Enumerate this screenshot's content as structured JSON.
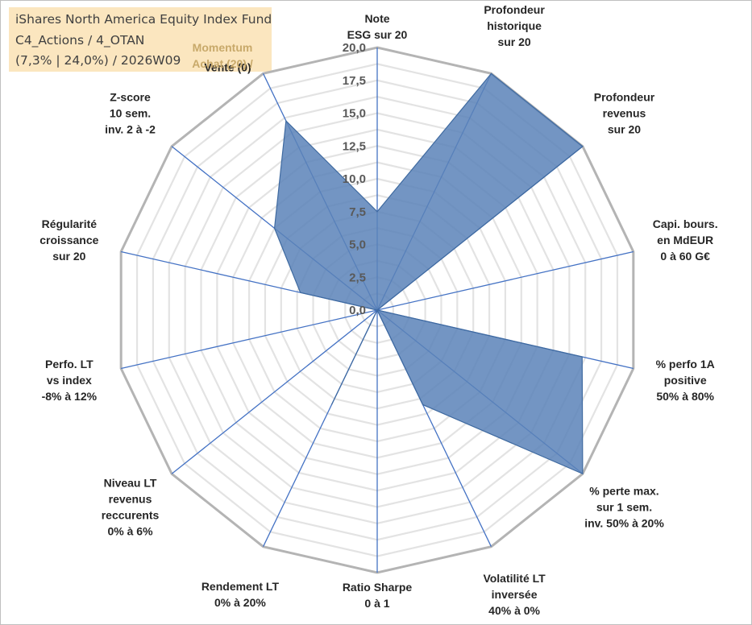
{
  "header": {
    "fund_name": "iShares North America Equity Index Fund",
    "category": "C4_Actions / 4_OTAN",
    "stats": "(7,3% | 24,0%) / 2026W09"
  },
  "momentum": {
    "line1": "Momentum",
    "line2": "Achat (20) /"
  },
  "colors": {
    "info_box": "#fbe6bf",
    "series_fill": "#5b82b8",
    "series_stroke": "#3f6aa0",
    "spoke": "#4472c4",
    "grid": "#c0c0c0",
    "momentum_text": "#c8a96a"
  },
  "chart_data": {
    "type": "radar",
    "rmax": 20,
    "ticks": [
      "0,0",
      "2,5",
      "5,0",
      "7,5",
      "10,0",
      "12,5",
      "15,0",
      "17,5",
      "20,0"
    ],
    "tick_values": [
      0,
      2.5,
      5,
      7.5,
      10,
      12.5,
      15,
      17.5,
      20
    ],
    "gridlines": true,
    "axes": [
      {
        "label": [
          "Note",
          "ESG sur 20"
        ]
      },
      {
        "label": [
          "Profondeur",
          "historique",
          "sur 20"
        ]
      },
      {
        "label": [
          "Profondeur",
          "revenus",
          "sur 20"
        ]
      },
      {
        "label": [
          "Capi. bours.",
          "en MdEUR",
          "0 à 60 G€"
        ]
      },
      {
        "label": [
          "% perfo 1A",
          "positive",
          "50% à 80%"
        ]
      },
      {
        "label": [
          "% perte max.",
          "sur 1 sem.",
          "inv. 50% à 20%"
        ]
      },
      {
        "label": [
          "Volatilité LT",
          "inversée",
          "40% à 0%"
        ]
      },
      {
        "label": [
          "Ratio Sharpe",
          "0 à 1"
        ]
      },
      {
        "label": [
          "Rendement LT",
          "0% à 20%"
        ]
      },
      {
        "label": [
          "Niveau LT",
          "revenus",
          "reccurents",
          "0% à 6%"
        ]
      },
      {
        "label": [
          "Perfo. LT",
          "vs index",
          "-8% à 12%"
        ]
      },
      {
        "label": [
          "Régularité",
          "croissance",
          "sur 20"
        ]
      },
      {
        "label": [
          "Z-score",
          "10 sem.",
          "inv. 2 à -2"
        ]
      },
      {
        "label": [
          "Vente (0)"
        ]
      }
    ],
    "series": [
      {
        "values": [
          7.5,
          20,
          20,
          0,
          16,
          20,
          8,
          0,
          8,
          0,
          0,
          6,
          10,
          16
        ]
      }
    ]
  }
}
